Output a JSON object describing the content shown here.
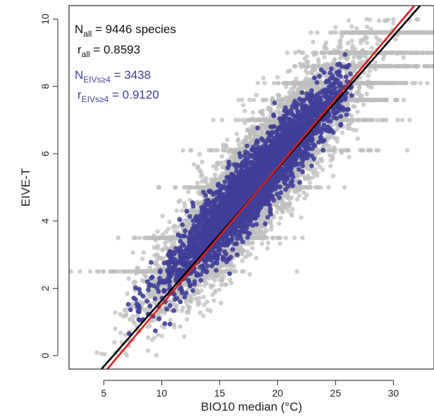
{
  "chart_data": {
    "type": "scatter",
    "title": "",
    "xlabel": "BIO10 median (°C)",
    "ylabel": "EIVE-T",
    "xlim": [
      2.0,
      33.5
    ],
    "ylim": [
      -0.4,
      10.4
    ],
    "xticks": [
      5,
      10,
      15,
      20,
      25,
      30
    ],
    "yticks": [
      0,
      2,
      4,
      6,
      8,
      10
    ],
    "grid": false,
    "annotations": {
      "all_n_prefix": "N",
      "all_n_sub": "all",
      "all_n_value": " = 9446 species",
      "all_r_prefix": "r",
      "all_r_sub": "all",
      "all_r_value": " = 0.8593",
      "eivs_n_prefix": "N",
      "eivs_n_sub": "EIVs≥4",
      "eivs_n_value": " = 3438",
      "eivs_r_prefix": "r",
      "eivs_r_sub": "EIVs≥4",
      "eivs_r_value": " = 0.9120"
    },
    "series": [
      {
        "id": "all",
        "color": "#bdbdbd",
        "n": 9446,
        "r": 0.8593,
        "cloud": {
          "x_mean": 17.8,
          "x_sd": 3.9,
          "y_slope": 0.37,
          "y_intercept": -1.55,
          "y_noise_sd": 0.75,
          "x_min": 2.5,
          "x_max": 33.0,
          "band_levels": [
            2.5,
            3.5,
            5.0,
            6.1,
            7.0,
            7.6,
            8.1,
            8.6,
            9.0,
            9.6
          ],
          "band_fraction": 0.2
        }
      },
      {
        "id": "eivs",
        "color": "#3f3f99",
        "n": 3438,
        "r": 0.912,
        "cloud": {
          "x_mean": 17.6,
          "x_sd": 3.5,
          "y_slope": 0.375,
          "y_intercept": -1.65,
          "y_noise_sd": 0.5,
          "x_min": 7.0,
          "x_max": 26.5
        }
      }
    ],
    "lines": [
      {
        "id": "black-fit",
        "color": "#000000",
        "x": [
          4.8,
          32.3
        ],
        "y": [
          -0.4,
          10.4
        ]
      },
      {
        "id": "red-fit",
        "color": "#d81e1e",
        "x": [
          5.3,
          31.8
        ],
        "y": [
          -0.4,
          10.4
        ]
      }
    ]
  }
}
